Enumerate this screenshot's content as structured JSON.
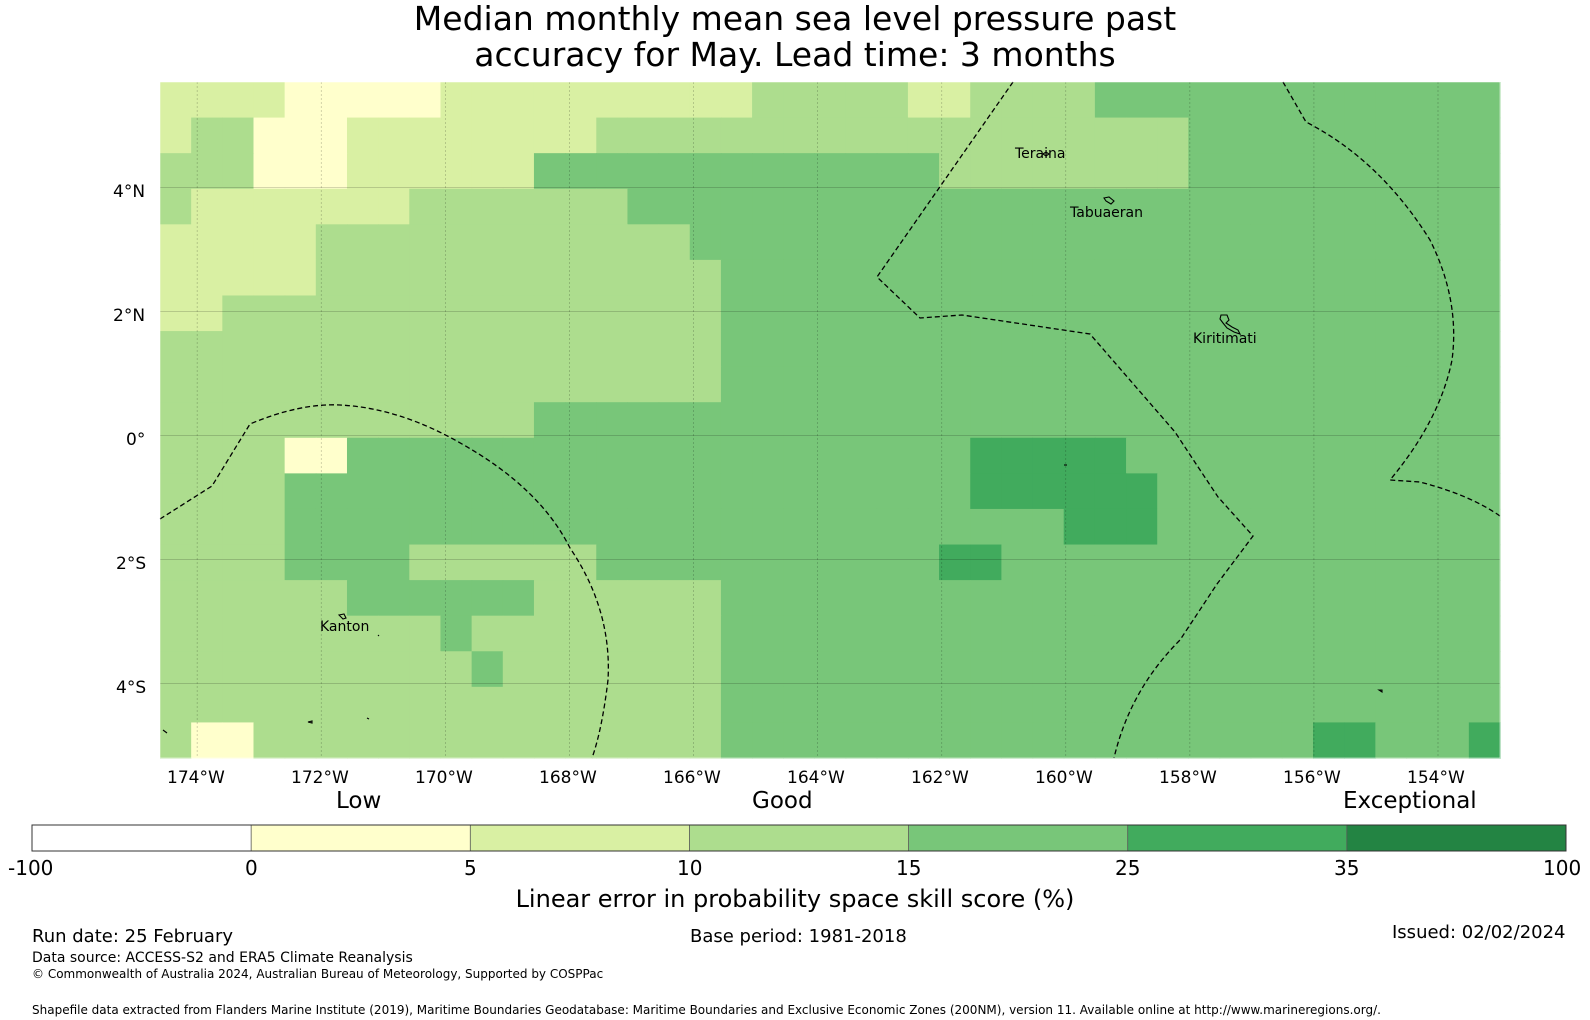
{
  "title": {
    "line1": "Median monthly mean sea level pressure past",
    "line2": "accuracy for May. Lead time: 3 months"
  },
  "map": {
    "lon_range": [
      -174.6,
      -153.0
    ],
    "lat_range": [
      -5.2,
      5.7
    ],
    "lon_ticks": [
      "174°W",
      "172°W",
      "170°W",
      "168°W",
      "166°W",
      "164°W",
      "162°W",
      "160°W",
      "158°W",
      "156°W",
      "154°W"
    ],
    "lat_ticks": [
      "4°N",
      "2°N",
      "0°",
      "2°S",
      "4°S"
    ],
    "places": [
      {
        "name": "Teraina"
      },
      {
        "name": "Tabuaeran"
      },
      {
        "name": "Kiritimati"
      },
      {
        "name": "Kanton"
      }
    ]
  },
  "colors": {
    "below_0": "#ffffff",
    "0_5": "#ffffcc",
    "5_10": "#d9f0a3",
    "10_15": "#addd8e",
    "15_25": "#78c679",
    "25_35": "#41ab5d",
    "35_100": "#238443"
  },
  "colorbar": {
    "category_low": "Low",
    "category_good": "Good",
    "category_exceptional": "Exceptional",
    "labels": [
      "-100",
      "0",
      "5",
      "10",
      "15",
      "25",
      "35",
      "100"
    ],
    "axis_label": "Linear error in probability space skill score (%)"
  },
  "footer": {
    "run_date": "Run date: 25 February",
    "base_period": "Base period: 1981-2018",
    "issued": "Issued: 02/02/2024",
    "data_source": "Data source: ACCESS-S2 and ERA5 Climate Reanalysis",
    "copyright": "© Commonwealth of Australia 2024, Australian Bureau of Meteorology, Supported by COSPPac",
    "shapefile": "Shapefile data extracted from Flanders Marine Institute (2019), Maritime Boundaries Geodatabase: Maritime Boundaries and Exclusive Economic Zones (200NM), version 11. Available online at http://www.marineregions.org/."
  }
}
